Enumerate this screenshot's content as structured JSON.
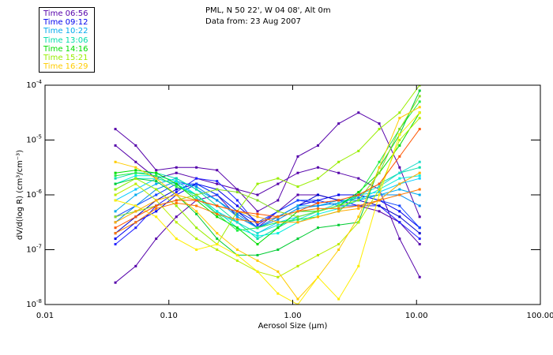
{
  "header": {
    "location": "PML, N 50 22', W 04 08', Alt 0m",
    "date": "Data from: 23 Aug 2007"
  },
  "legend": [
    {
      "label": "Time 06:56",
      "color": "#5500aa"
    },
    {
      "label": "Time 09:12",
      "color": "#0000ee"
    },
    {
      "label": "Time 10:22",
      "color": "#00aaee"
    },
    {
      "label": "Time 13:06",
      "color": "#00ddaa"
    },
    {
      "label": "Time 14:16",
      "color": "#00dd00"
    },
    {
      "label": "Time 15:21",
      "color": "#99ee00"
    },
    {
      "label": "Time 16:29",
      "color": "#ffcc00"
    }
  ],
  "chart_data": {
    "type": "line",
    "title": "",
    "xlabel": "Aerosol Size (µm)",
    "ylabel": "dV/d(log R) (cm³/cm⁻³)",
    "xscale": "log",
    "yscale": "log",
    "xlim": [
      0.01,
      100
    ],
    "ylim": [
      1e-08,
      0.0001
    ],
    "xticks": [
      "0.01",
      "0.10",
      "1.00",
      "10.00",
      "100.00"
    ],
    "yticks": [
      {
        "base": "10",
        "exp": "-4"
      },
      {
        "base": "10",
        "exp": "-5"
      },
      {
        "base": "10",
        "exp": "-6"
      },
      {
        "base": "10",
        "exp": "-7"
      },
      {
        "base": "10",
        "exp": "-8"
      }
    ],
    "legend_position": "top-left, outside",
    "x": [
      0.037,
      0.054,
      0.079,
      0.115,
      0.167,
      0.245,
      0.357,
      0.52,
      0.76,
      1.1,
      1.6,
      2.35,
      3.4,
      5.0,
      7.3,
      10.6
    ],
    "series_note": "values are log10(dV/dlogR)",
    "series": [
      {
        "name": "06:56 a",
        "color": "#5500aa",
        "values": [
          -4.8,
          -5.1,
          -5.55,
          -5.5,
          -5.5,
          -5.55,
          -5.9,
          -6.3,
          -6.1,
          -5.3,
          -5.1,
          -4.7,
          -4.5,
          -4.7,
          -5.5,
          -6.4
        ]
      },
      {
        "name": "06:56 b",
        "color": "#5500aa",
        "values": [
          -5.1,
          -5.4,
          -5.7,
          -5.6,
          -5.7,
          -5.8,
          -5.9,
          -6.0,
          -5.8,
          -5.6,
          -5.5,
          -5.6,
          -5.7,
          -5.9,
          -6.8,
          -7.5
        ]
      },
      {
        "name": "06:56 c",
        "color": "#5500aa",
        "values": [
          -7.6,
          -7.3,
          -6.8,
          -6.4,
          -6.1,
          -6.0,
          -6.4,
          -6.6,
          -6.3,
          -6.0,
          -6.0,
          -6.1,
          -6.2,
          -6.3,
          -6.5,
          -6.9
        ]
      },
      {
        "name": "09:12 a",
        "color": "#0000ee",
        "values": [
          -6.8,
          -6.5,
          -6.3,
          -6.0,
          -5.8,
          -5.9,
          -6.2,
          -6.5,
          -6.4,
          -6.2,
          -6.1,
          -6.0,
          -6.0,
          -6.1,
          -6.3,
          -6.6
        ]
      },
      {
        "name": "09:12 b",
        "color": "#2222ff",
        "values": [
          -6.9,
          -6.6,
          -6.2,
          -5.95,
          -5.7,
          -5.75,
          -6.1,
          -6.55,
          -6.3,
          -6.1,
          -6.15,
          -6.1,
          -6.2,
          -6.2,
          -6.5,
          -6.8
        ]
      },
      {
        "name": "09:12 c",
        "color": "#0000cc",
        "values": [
          -6.7,
          -6.4,
          -6.1,
          -5.9,
          -5.8,
          -6.0,
          -6.3,
          -6.6,
          -6.4,
          -6.2,
          -6.0,
          -6.1,
          -6.1,
          -6.2,
          -6.4,
          -6.7
        ]
      },
      {
        "name": "09:12 d",
        "color": "#1144ff",
        "values": [
          -6.4,
          -6.2,
          -6.0,
          -5.8,
          -5.8,
          -6.0,
          -6.3,
          -6.5,
          -6.3,
          -6.1,
          -6.1,
          -6.2,
          -6.2,
          -6.1,
          -6.2,
          -6.6
        ]
      },
      {
        "name": "10:22 a",
        "color": "#00aaee",
        "values": [
          -6.3,
          -6.0,
          -5.8,
          -5.7,
          -5.9,
          -6.1,
          -6.4,
          -6.6,
          -6.4,
          -6.2,
          -6.2,
          -6.1,
          -6.1,
          -6.0,
          -5.9,
          -6.0
        ]
      },
      {
        "name": "10:22 b",
        "color": "#00ccff",
        "values": [
          -6.1,
          -5.9,
          -5.7,
          -5.8,
          -6.0,
          -6.3,
          -6.5,
          -6.7,
          -6.5,
          -6.4,
          -6.3,
          -6.2,
          -6.0,
          -5.95,
          -5.8,
          -5.7
        ]
      },
      {
        "name": "10:22 c",
        "color": "#0088ee",
        "values": [
          -6.5,
          -6.2,
          -5.9,
          -5.75,
          -5.85,
          -6.1,
          -6.35,
          -6.6,
          -6.45,
          -6.25,
          -6.2,
          -6.15,
          -6.05,
          -6.0,
          -6.0,
          -6.2
        ]
      },
      {
        "name": "13:06 a",
        "color": "#00ddaa",
        "values": [
          -5.7,
          -5.6,
          -5.6,
          -5.7,
          -5.9,
          -6.2,
          -6.5,
          -6.8,
          -6.6,
          -6.4,
          -6.3,
          -6.2,
          -6.0,
          -5.8,
          -5.6,
          -5.5
        ]
      },
      {
        "name": "13:06 b",
        "color": "#00eedd",
        "values": [
          -5.8,
          -5.65,
          -5.65,
          -5.75,
          -6.0,
          -6.3,
          -6.6,
          -6.75,
          -6.7,
          -6.5,
          -6.35,
          -6.25,
          -6.1,
          -5.9,
          -5.7,
          -5.65
        ]
      },
      {
        "name": "13:06 c",
        "color": "#22ddcc",
        "values": [
          -5.9,
          -5.7,
          -5.7,
          -5.8,
          -6.05,
          -6.35,
          -6.5,
          -6.7,
          -6.55,
          -6.45,
          -6.3,
          -6.15,
          -6.0,
          -5.85,
          -5.6,
          -5.4
        ]
      },
      {
        "name": "14:16 a",
        "color": "#00dd00",
        "values": [
          -5.6,
          -5.55,
          -5.6,
          -5.8,
          -6.1,
          -6.4,
          -6.6,
          -6.9,
          -6.6,
          -6.3,
          -6.3,
          -6.2,
          -5.95,
          -5.6,
          -5.1,
          -4.5
        ]
      },
      {
        "name": "14:16 b",
        "color": "#22ee44",
        "values": [
          -5.65,
          -5.6,
          -5.65,
          -5.85,
          -6.0,
          -6.35,
          -6.65,
          -6.6,
          -6.5,
          -6.45,
          -6.4,
          -6.3,
          -6.0,
          -5.4,
          -4.8,
          -4.3
        ]
      },
      {
        "name": "14:16 c",
        "color": "#00cc33",
        "values": [
          -5.8,
          -5.7,
          -5.75,
          -6.0,
          -6.35,
          -6.8,
          -7.1,
          -7.1,
          -7.0,
          -6.8,
          -6.6,
          -6.55,
          -6.5,
          -5.5,
          -4.9,
          -4.1
        ]
      },
      {
        "name": "15:21 a",
        "color": "#99ee00",
        "values": [
          -5.9,
          -5.7,
          -5.9,
          -6.2,
          -6.6,
          -6.9,
          -6.3,
          -5.8,
          -5.7,
          -5.85,
          -5.7,
          -5.4,
          -5.2,
          -4.8,
          -4.5,
          -4.0
        ]
      },
      {
        "name": "15:21 b",
        "color": "#bbee00",
        "values": [
          -6.0,
          -5.8,
          -6.1,
          -6.5,
          -6.8,
          -7.0,
          -7.2,
          -7.4,
          -7.5,
          -7.3,
          -7.1,
          -6.9,
          -6.5,
          -5.9,
          -5.0,
          -4.6
        ]
      },
      {
        "name": "15:21 c",
        "color": "#88dd22",
        "values": [
          -6.4,
          -6.3,
          -6.2,
          -6.1,
          -6.0,
          -5.9,
          -5.95,
          -6.1,
          -6.3,
          -6.4,
          -6.3,
          -6.2,
          -6.1,
          -5.6,
          -4.8,
          -4.2
        ]
      },
      {
        "name": "16:29 a",
        "color": "#ffcc00",
        "values": [
          -5.4,
          -5.5,
          -5.7,
          -6.0,
          -6.3,
          -6.7,
          -7.0,
          -7.2,
          -7.4,
          -7.9,
          -7.5,
          -7.0,
          -6.4,
          -5.5,
          -4.6,
          -4.4
        ]
      },
      {
        "name": "16:29 b",
        "color": "#ffee00",
        "values": [
          -6.1,
          -6.2,
          -6.4,
          -6.8,
          -7.0,
          -6.9,
          -7.1,
          -7.4,
          -7.8,
          -8.0,
          -7.5,
          -7.9,
          -7.3,
          -6.0,
          -4.9,
          -4.5
        ]
      },
      {
        "name": "16:29 c",
        "color": "#ffaa00",
        "values": [
          -6.5,
          -6.3,
          -6.1,
          -6.0,
          -6.1,
          -6.2,
          -6.3,
          -6.4,
          -6.5,
          -6.5,
          -6.4,
          -6.3,
          -6.25,
          -6.1,
          -5.8,
          -5.6
        ]
      },
      {
        "name": "16:29 d",
        "color": "#ff5500",
        "values": [
          -6.6,
          -6.4,
          -6.2,
          -6.1,
          -6.1,
          -6.2,
          -6.3,
          -6.35,
          -6.4,
          -6.3,
          -6.15,
          -6.1,
          -6.0,
          -5.8,
          -5.3,
          -4.8
        ]
      },
      {
        "name": "16:29 e",
        "color": "#ff7700",
        "values": [
          -6.7,
          -6.5,
          -6.25,
          -6.15,
          -6.2,
          -6.35,
          -6.45,
          -6.5,
          -6.4,
          -6.3,
          -6.25,
          -6.25,
          -6.2,
          -6.1,
          -6.0,
          -5.9
        ]
      }
    ]
  }
}
